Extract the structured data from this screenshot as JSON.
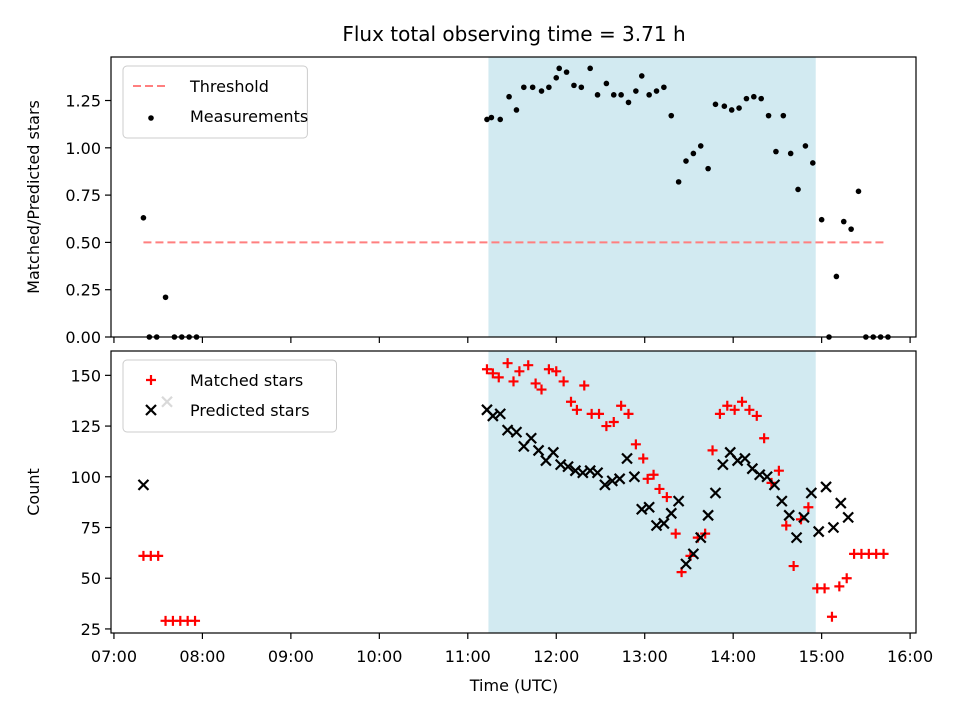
{
  "chart_data": {
    "title": "Flux total observing time = 3.71 h",
    "xlabel": "Time (UTC)",
    "x_ticks": [
      "07:00",
      "08:00",
      "09:00",
      "10:00",
      "11:00",
      "12:00",
      "13:00",
      "14:00",
      "15:00",
      "16:00"
    ],
    "xlim": [
      "06:58",
      "16:04"
    ],
    "shaded_span": {
      "start": "11:14",
      "end": "14:56",
      "color": "#add8e6"
    },
    "panels": [
      {
        "type": "scatter",
        "ylabel": "Matched/Predicted stars",
        "ylim": [
          0,
          1.48
        ],
        "y_ticks": [
          "0.00",
          "0.25",
          "0.50",
          "0.75",
          "1.00",
          "1.25"
        ],
        "legend_position": "upper-left",
        "series": [
          {
            "name": "Threshold",
            "kind": "dashed-line",
            "color": "#ff7f7f",
            "points": [
              [
                "07:20",
                0.5
              ],
              [
                "15:42",
                0.5
              ]
            ]
          },
          {
            "name": "Measurements",
            "kind": "dots",
            "color": "#000000",
            "points": [
              [
                "07:20",
                0.63
              ],
              [
                "07:24",
                0.0
              ],
              [
                "07:29",
                0.0
              ],
              [
                "07:35",
                0.21
              ],
              [
                "07:41",
                0.0
              ],
              [
                "07:46",
                0.0
              ],
              [
                "07:51",
                0.0
              ],
              [
                "07:56",
                0.0
              ],
              [
                "11:13",
                1.15
              ],
              [
                "11:16",
                1.16
              ],
              [
                "11:22",
                1.15
              ],
              [
                "11:28",
                1.27
              ],
              [
                "11:33",
                1.2
              ],
              [
                "11:38",
                1.32
              ],
              [
                "11:44",
                1.32
              ],
              [
                "11:50",
                1.3
              ],
              [
                "11:55",
                1.32
              ],
              [
                "11:60",
                1.37
              ],
              [
                "12:02",
                1.42
              ],
              [
                "12:07",
                1.4
              ],
              [
                "12:12",
                1.33
              ],
              [
                "12:17",
                1.32
              ],
              [
                "12:23",
                1.42
              ],
              [
                "12:28",
                1.28
              ],
              [
                "12:34",
                1.34
              ],
              [
                "12:39",
                1.28
              ],
              [
                "12:44",
                1.28
              ],
              [
                "12:49",
                1.24
              ],
              [
                "12:54",
                1.3
              ],
              [
                "12:58",
                1.38
              ],
              [
                "13:03",
                1.28
              ],
              [
                "13:08",
                1.3
              ],
              [
                "13:13",
                1.32
              ],
              [
                "13:18",
                1.17
              ],
              [
                "13:23",
                0.82
              ],
              [
                "13:28",
                0.93
              ],
              [
                "13:33",
                0.97
              ],
              [
                "13:38",
                1.01
              ],
              [
                "13:43",
                0.89
              ],
              [
                "13:48",
                1.23
              ],
              [
                "13:54",
                1.22
              ],
              [
                "13:59",
                1.2
              ],
              [
                "14:04",
                1.21
              ],
              [
                "14:09",
                1.26
              ],
              [
                "14:14",
                1.27
              ],
              [
                "14:19",
                1.26
              ],
              [
                "14:24",
                1.17
              ],
              [
                "14:29",
                0.98
              ],
              [
                "14:34",
                1.17
              ],
              [
                "14:39",
                0.97
              ],
              [
                "14:44",
                0.78
              ],
              [
                "14:49",
                1.01
              ],
              [
                "14:54",
                0.92
              ],
              [
                "15:00",
                0.62
              ],
              [
                "15:05",
                0.0
              ],
              [
                "15:10",
                0.32
              ],
              [
                "15:15",
                0.61
              ],
              [
                "15:20",
                0.57
              ],
              [
                "15:25",
                0.77
              ],
              [
                "15:30",
                0.0
              ],
              [
                "15:35",
                0.0
              ],
              [
                "15:40",
                0.0
              ],
              [
                "15:45",
                0.0
              ]
            ]
          }
        ]
      },
      {
        "type": "scatter",
        "ylabel": "Count",
        "ylim": [
          23,
          162
        ],
        "y_ticks": [
          "25",
          "50",
          "75",
          "100",
          "125",
          "150"
        ],
        "legend_position": "upper-left",
        "series": [
          {
            "name": "Matched stars",
            "kind": "plus",
            "color": "#ff0000",
            "points": [
              [
                "07:20",
                61
              ],
              [
                "07:25",
                61
              ],
              [
                "07:30",
                61
              ],
              [
                "07:35",
                29
              ],
              [
                "07:40",
                29
              ],
              [
                "07:45",
                29
              ],
              [
                "07:50",
                29
              ],
              [
                "07:55",
                29
              ],
              [
                "11:13",
                153
              ],
              [
                "11:17",
                151
              ],
              [
                "11:21",
                149
              ],
              [
                "11:27",
                156
              ],
              [
                "11:31",
                147
              ],
              [
                "11:35",
                152
              ],
              [
                "11:41",
                155
              ],
              [
                "11:46",
                146
              ],
              [
                "11:50",
                143
              ],
              [
                "11:55",
                153
              ],
              [
                "11:60",
                152
              ],
              [
                "12:05",
                147
              ],
              [
                "12:10",
                137
              ],
              [
                "12:14",
                133
              ],
              [
                "12:19",
                145
              ],
              [
                "12:24",
                131
              ],
              [
                "12:29",
                131
              ],
              [
                "12:34",
                125
              ],
              [
                "12:39",
                127
              ],
              [
                "12:44",
                135
              ],
              [
                "12:49",
                131
              ],
              [
                "12:54",
                116
              ],
              [
                "12:59",
                109
              ],
              [
                "13:02",
                99
              ],
              [
                "13:06",
                101
              ],
              [
                "13:10",
                94
              ],
              [
                "13:15",
                90
              ],
              [
                "13:21",
                72
              ],
              [
                "13:25",
                53
              ],
              [
                "13:31",
                61
              ],
              [
                "13:36",
                70
              ],
              [
                "13:41",
                72
              ],
              [
                "13:46",
                113
              ],
              [
                "13:51",
                131
              ],
              [
                "13:56",
                135
              ],
              [
                "14:01",
                133
              ],
              [
                "14:06",
                137
              ],
              [
                "14:11",
                133
              ],
              [
                "14:16",
                130
              ],
              [
                "14:21",
                119
              ],
              [
                "14:26",
                97
              ],
              [
                "14:31",
                103
              ],
              [
                "14:36",
                76
              ],
              [
                "14:41",
                56
              ],
              [
                "14:46",
                79
              ],
              [
                "14:51",
                85
              ],
              [
                "14:57",
                45
              ],
              [
                "15:02",
                45
              ],
              [
                "15:07",
                31
              ],
              [
                "15:12",
                46
              ],
              [
                "15:17",
                50
              ],
              [
                "15:22",
                62
              ],
              [
                "15:27",
                62
              ],
              [
                "15:32",
                62
              ],
              [
                "15:37",
                62
              ],
              [
                "15:42",
                62
              ]
            ]
          },
          {
            "name": "Predicted stars",
            "kind": "cross",
            "color": "#000000",
            "points": [
              [
                "07:20",
                96
              ],
              [
                "07:36",
                137
              ],
              [
                "11:13",
                133
              ],
              [
                "11:17",
                130
              ],
              [
                "11:22",
                131
              ],
              [
                "11:27",
                123
              ],
              [
                "11:33",
                122
              ],
              [
                "11:38",
                115
              ],
              [
                "11:43",
                119
              ],
              [
                "11:48",
                113
              ],
              [
                "11:53",
                108
              ],
              [
                "11:58",
                112
              ],
              [
                "12:03",
                106
              ],
              [
                "12:08",
                105
              ],
              [
                "12:13",
                103
              ],
              [
                "12:18",
                102
              ],
              [
                "12:23",
                103
              ],
              [
                "12:28",
                102
              ],
              [
                "12:33",
                96
              ],
              [
                "12:38",
                98
              ],
              [
                "12:43",
                99
              ],
              [
                "12:48",
                109
              ],
              [
                "12:53",
                100
              ],
              [
                "12:58",
                84
              ],
              [
                "13:03",
                85
              ],
              [
                "13:08",
                76
              ],
              [
                "13:13",
                77
              ],
              [
                "13:18",
                82
              ],
              [
                "13:23",
                88
              ],
              [
                "13:28",
                57
              ],
              [
                "13:33",
                62
              ],
              [
                "13:38",
                70
              ],
              [
                "13:43",
                81
              ],
              [
                "13:48",
                92
              ],
              [
                "13:53",
                106
              ],
              [
                "13:58",
                112
              ],
              [
                "14:03",
                108
              ],
              [
                "14:08",
                109
              ],
              [
                "14:13",
                104
              ],
              [
                "14:18",
                101
              ],
              [
                "14:23",
                100
              ],
              [
                "14:28",
                96
              ],
              [
                "14:33",
                88
              ],
              [
                "14:38",
                81
              ],
              [
                "14:43",
                70
              ],
              [
                "14:48",
                80
              ],
              [
                "14:53",
                92
              ],
              [
                "14:58",
                73
              ],
              [
                "15:03",
                95
              ],
              [
                "15:08",
                75
              ],
              [
                "15:13",
                87
              ],
              [
                "15:18",
                80
              ]
            ]
          }
        ]
      }
    ]
  }
}
